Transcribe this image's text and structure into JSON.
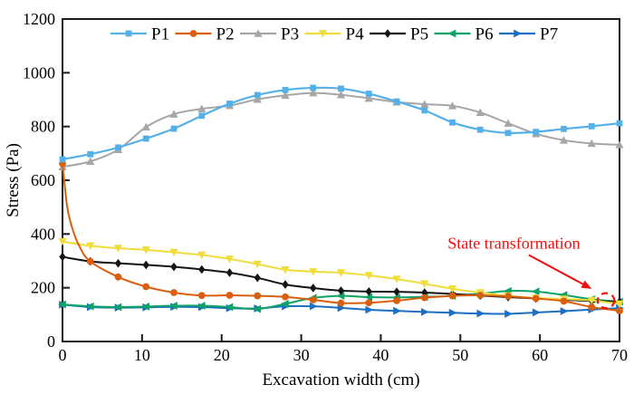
{
  "chart_data": {
    "type": "line",
    "title": "",
    "xlabel": "Excavation width (cm)",
    "ylabel": "Stress (Pa)",
    "xlim": [
      0,
      70
    ],
    "ylim": [
      0,
      1200
    ],
    "xticks": [
      0,
      10,
      20,
      30,
      40,
      50,
      60,
      70
    ],
    "yticks": [
      0,
      200,
      400,
      600,
      800,
      1000,
      1200
    ],
    "grid": false,
    "legend_position": "top-center-inside",
    "axis_color": "#1a1a1a",
    "x": [
      0,
      3.5,
      7,
      10.5,
      14,
      17.5,
      21,
      24.5,
      28,
      31.5,
      35,
      38.5,
      42,
      45.5,
      49,
      52.5,
      56,
      59.5,
      63,
      66.5,
      70
    ],
    "series": [
      {
        "name": "P1",
        "color": "#55b0e8",
        "marker": "square",
        "y": [
          678,
          697,
          722,
          755,
          792,
          840,
          885,
          917,
          936,
          944,
          941,
          922,
          893,
          860,
          815,
          788,
          776,
          780,
          791,
          801,
          812
        ]
      },
      {
        "name": "P2",
        "color": "#d95f0e",
        "marker": "circle",
        "x": [
          0,
          0.6,
          1.3,
          2.2,
          3.5,
          7,
          10.5,
          14,
          17.5,
          21,
          24.5,
          28,
          31.5,
          35,
          38.5,
          42,
          45.5,
          49,
          52.5,
          56,
          59.5,
          63,
          66.5,
          70
        ],
        "y": [
          662,
          500,
          415,
          350,
          298,
          240,
          204,
          182,
          171,
          172,
          170,
          166,
          155,
          143,
          144,
          152,
          163,
          170,
          172,
          168,
          160,
          150,
          128,
          114
        ],
        "no_marker_idx": [
          1,
          2,
          3
        ]
      },
      {
        "name": "P3",
        "color": "#a6a6a6",
        "marker": "triangle-up",
        "y": [
          650,
          670,
          714,
          798,
          846,
          866,
          878,
          901,
          916,
          925,
          918,
          905,
          891,
          883,
          877,
          852,
          812,
          773,
          749,
          737,
          732
        ]
      },
      {
        "name": "P4",
        "color": "#f0dd3c",
        "marker": "triangle-down",
        "y": [
          372,
          356,
          347,
          341,
          332,
          322,
          307,
          288,
          267,
          260,
          256,
          246,
          232,
          215,
          196,
          182,
          170,
          162,
          158,
          153,
          140
        ]
      },
      {
        "name": "P5",
        "color": "#141414",
        "marker": "diamond",
        "y": [
          315,
          298,
          291,
          285,
          278,
          268,
          256,
          237,
          212,
          199,
          189,
          186,
          185,
          182,
          177,
          171,
          165,
          160,
          155,
          151,
          148
        ]
      },
      {
        "name": "P6",
        "color": "#0da266",
        "marker": "triangle-left",
        "y": [
          138,
          131,
          128,
          130,
          133,
          133,
          128,
          121,
          140,
          162,
          170,
          165,
          164,
          166,
          170,
          178,
          188,
          186,
          173,
          157,
          148
        ]
      },
      {
        "name": "P7",
        "color": "#1d6fc2",
        "marker": "triangle-right",
        "y": [
          137,
          128,
          126,
          127,
          129,
          128,
          124,
          123,
          131,
          131,
          125,
          118,
          114,
          110,
          107,
          104,
          103,
          108,
          113,
          119,
          124
        ]
      }
    ],
    "annotation": {
      "text": "State transformation",
      "color": "#f10e0e",
      "text_pos": {
        "x_cm": 48.4,
        "y_pa": 345
      },
      "arrow": {
        "from": {
          "x_cm": 58.6,
          "y_pa": 322
        },
        "to": {
          "x_cm": 66.5,
          "y_pa": 196
        }
      },
      "ellipse": {
        "x_cm": 68.3,
        "y_pa": 152,
        "rx_cm": 1.05,
        "ry_pa": 28
      }
    }
  }
}
